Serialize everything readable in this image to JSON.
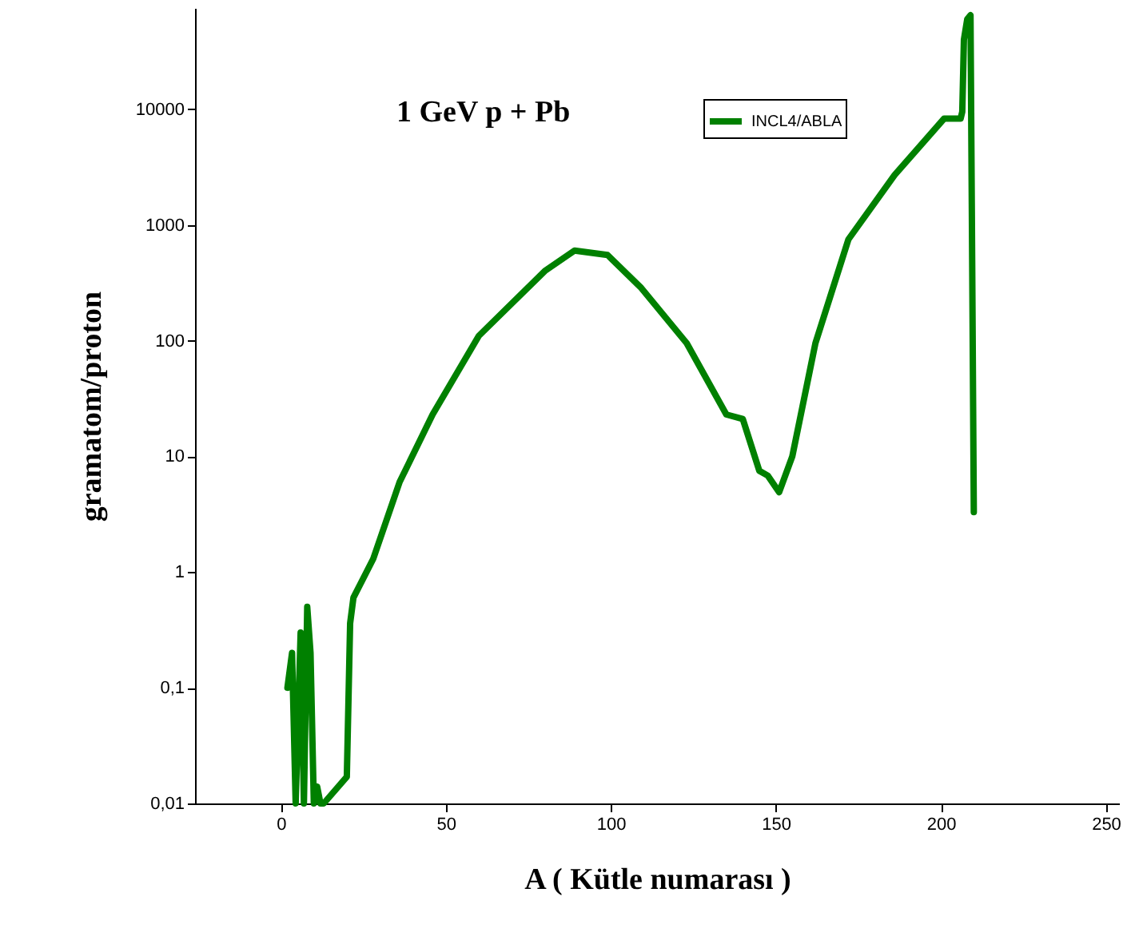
{
  "chart_data": {
    "type": "line",
    "xlabel": "A ( Kütle numarası )",
    "ylabel": "gramatom/proton",
    "annotations": [
      "1 GeV p + Pb"
    ],
    "x": [
      2,
      3.4,
      4.5,
      6,
      7,
      8,
      9,
      10,
      11,
      12,
      13,
      20,
      21,
      22,
      28,
      36,
      46,
      60,
      80,
      89,
      99,
      109,
      123,
      135,
      140,
      145,
      147.6,
      151,
      155,
      162,
      172,
      186,
      201,
      206,
      206.5,
      207,
      208,
      209,
      209.5,
      210
    ],
    "series": [
      {
        "name": "INCL4/ABLA",
        "color": "#008000",
        "values": [
          0.1,
          0.2,
          0.01,
          0.3,
          0.01,
          0.5,
          0.2,
          0.01,
          0.014,
          0.01,
          0.01,
          0.017,
          0.36,
          0.6,
          1.3,
          6,
          23,
          110,
          400,
          600,
          550,
          290,
          95,
          23,
          21,
          7.5,
          6.8,
          4.9,
          10,
          95,
          750,
          2700,
          8300,
          8300,
          9500,
          40000,
          60000,
          65000,
          500,
          3.3
        ]
      }
    ],
    "log": "y",
    "xlim": [
      -26,
      254
    ],
    "xticks": [
      0,
      50,
      100,
      150,
      200,
      250
    ],
    "ylim": [
      0.01,
      75000
    ],
    "yticks": [
      {
        "value": 0.01,
        "label": "0,01"
      },
      {
        "value": 0.1,
        "label": "0,1"
      },
      1,
      10,
      100,
      1000,
      10000
    ],
    "grid": false,
    "legend": "top right",
    "line_style": "solid",
    "marker": "none"
  }
}
